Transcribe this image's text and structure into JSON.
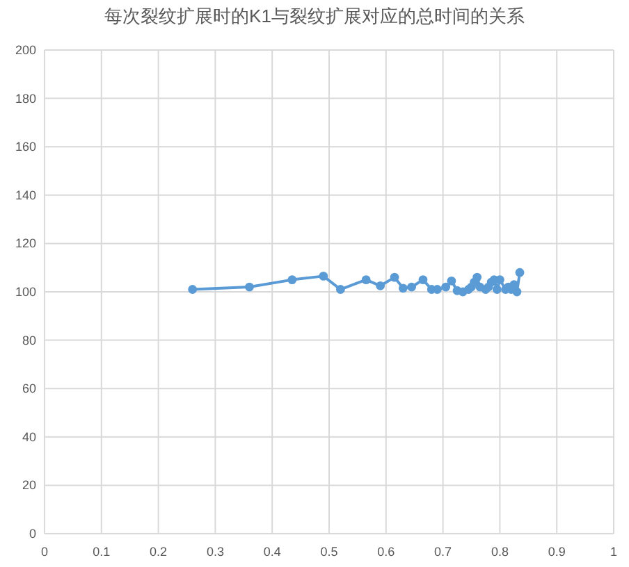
{
  "chart_data": {
    "type": "line",
    "title": "每次裂纹扩展时的K1与裂纹扩展对应的总时间的关系",
    "x": [
      0.26,
      0.36,
      0.435,
      0.49,
      0.52,
      0.565,
      0.59,
      0.615,
      0.63,
      0.645,
      0.665,
      0.68,
      0.69,
      0.705,
      0.715,
      0.725,
      0.735,
      0.745,
      0.75,
      0.755,
      0.76,
      0.765,
      0.775,
      0.78,
      0.785,
      0.79,
      0.795,
      0.8,
      0.81,
      0.815,
      0.82,
      0.825,
      0.83,
      0.835
    ],
    "series": [
      {
        "color": "#5b9bd5",
        "values": [
          101,
          102,
          105,
          106.5,
          101,
          105,
          102.5,
          106,
          101.5,
          102,
          105,
          101,
          101,
          102,
          104.5,
          100.5,
          100,
          101,
          102,
          104,
          106,
          102,
          101,
          102,
          104,
          105,
          101,
          105,
          101,
          102,
          101,
          103,
          100,
          108
        ]
      }
    ],
    "xlim": [
      0,
      1
    ],
    "xticks": [
      0,
      0.1,
      0.2,
      0.3,
      0.4,
      0.5,
      0.6,
      0.7,
      0.8,
      0.9,
      1
    ],
    "ylim": [
      0,
      200
    ],
    "yticks": [
      0,
      20,
      40,
      60,
      80,
      100,
      120,
      140,
      160,
      180,
      200
    ],
    "grid": true,
    "marker": "circle",
    "line_style": "solid"
  }
}
